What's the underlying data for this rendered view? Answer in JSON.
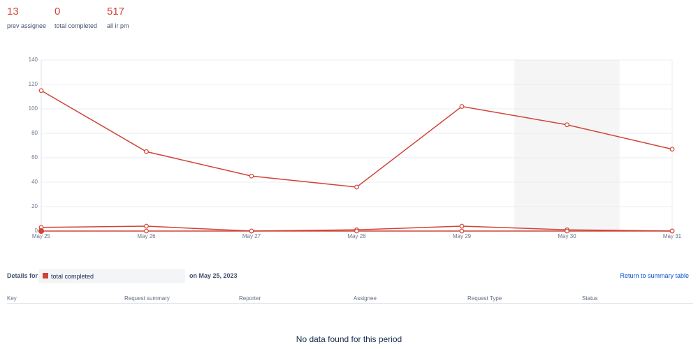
{
  "stats": [
    {
      "value": 13,
      "label": "prev assignee"
    },
    {
      "value": 0,
      "label": "total completed"
    },
    {
      "value": 517,
      "label": "all ir pm"
    }
  ],
  "chart_data": {
    "type": "line",
    "categories": [
      "May 25",
      "May 26",
      "May 27",
      "May 28",
      "May 29",
      "May 30",
      "May 31"
    ],
    "series": [
      {
        "color": "#d04437",
        "values": [
          115,
          65,
          45,
          36,
          102,
          87,
          67
        ]
      },
      {
        "color": "#d04437",
        "values": [
          3,
          4,
          0,
          1,
          4,
          1,
          0
        ]
      },
      {
        "color": "#d04437",
        "values": [
          0,
          0,
          0,
          0,
          0,
          0,
          0
        ]
      }
    ],
    "ylim": [
      0,
      140
    ],
    "yticks": [
      0,
      20,
      40,
      60,
      80,
      100,
      120,
      140
    ],
    "grid": true
  },
  "details": {
    "label": "Details for",
    "selected": "total completed",
    "date": "on May 25, 2023",
    "return_link": "Return to summary table"
  },
  "table": {
    "columns": [
      "Key",
      "Request summary",
      "Reporter",
      "Assignee",
      "Request Type",
      "Status"
    ]
  },
  "empty_message": "No data found for this period"
}
